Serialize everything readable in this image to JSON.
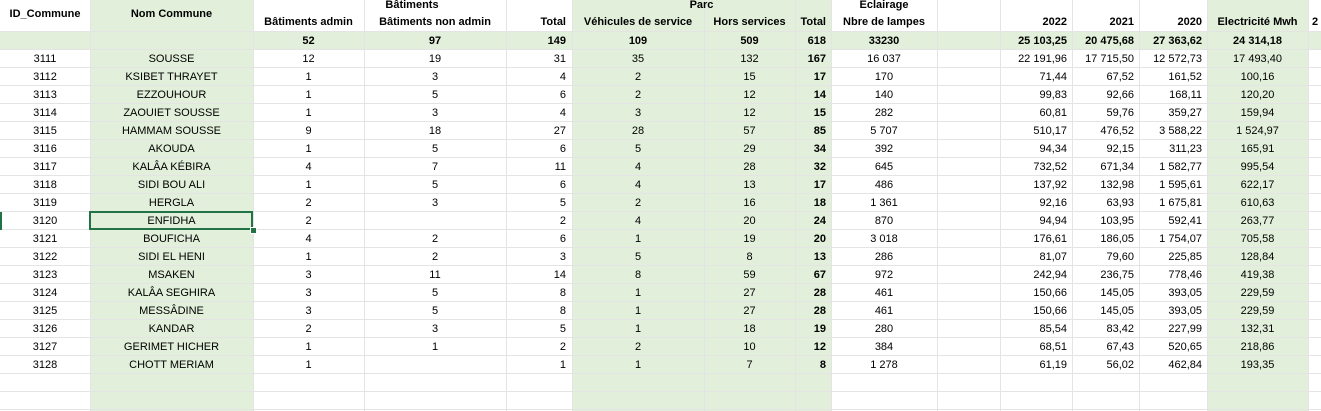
{
  "headers": {
    "id": "ID_Commune",
    "nom": "Nom Commune",
    "group_batiments": "Bâtiments",
    "group_parc": "Parc",
    "group_eclairage": "Eclairage",
    "bat_admin": "Bâtiments admin",
    "bat_non_admin": "Bâtiments non admin",
    "bat_total": "Total",
    "veh_service": "Véhicules de service",
    "hors_services": "Hors services",
    "parc_total": "Total",
    "lampes": "Nbre de lampes",
    "y2022": "2022",
    "y2021": "2021",
    "y2020": "2020",
    "elec": "Electricité Mwh",
    "next_col": "2"
  },
  "totals": {
    "bat_admin": "52",
    "bat_non_admin": "97",
    "bat_total": "149",
    "veh_service": "109",
    "hors_services": "509",
    "parc_total": "618",
    "lampes": "33230",
    "y2022": "25 103,25",
    "y2021": "20 475,68",
    "y2020": "27 363,62",
    "elec": "24 314,18"
  },
  "rows": [
    {
      "id": "3111",
      "nom": "SOUSSE",
      "ba": "12",
      "bna": "19",
      "bt": "31",
      "vs": "35",
      "hs": "132",
      "pt": "167",
      "lampes": "16 037",
      "y2022": "22 191,96",
      "y2021": "17 715,50",
      "y2020": "12 572,73",
      "elec": "17 493,40"
    },
    {
      "id": "3112",
      "nom": "KSIBET THRAYET",
      "ba": "1",
      "bna": "3",
      "bt": "4",
      "vs": "2",
      "hs": "15",
      "pt": "17",
      "lampes": "170",
      "y2022": "71,44",
      "y2021": "67,52",
      "y2020": "161,52",
      "elec": "100,16"
    },
    {
      "id": "3113",
      "nom": "EZZOUHOUR",
      "ba": "1",
      "bna": "5",
      "bt": "6",
      "vs": "2",
      "hs": "12",
      "pt": "14",
      "lampes": "140",
      "y2022": "99,83",
      "y2021": "92,66",
      "y2020": "168,11",
      "elec": "120,20"
    },
    {
      "id": "3114",
      "nom": "ZAOUIET SOUSSE",
      "ba": "1",
      "bna": "3",
      "bt": "4",
      "vs": "3",
      "hs": "12",
      "pt": "15",
      "lampes": "282",
      "y2022": "60,81",
      "y2021": "59,76",
      "y2020": "359,27",
      "elec": "159,94"
    },
    {
      "id": "3115",
      "nom": "HAMMAM SOUSSE",
      "ba": "9",
      "bna": "18",
      "bt": "27",
      "vs": "28",
      "hs": "57",
      "pt": "85",
      "lampes": "5 707",
      "y2022": "510,17",
      "y2021": "476,52",
      "y2020": "3 588,22",
      "elec": "1 524,97"
    },
    {
      "id": "3116",
      "nom": "AKOUDA",
      "ba": "1",
      "bna": "5",
      "bt": "6",
      "vs": "5",
      "hs": "29",
      "pt": "34",
      "lampes": "392",
      "y2022": "94,34",
      "y2021": "92,15",
      "y2020": "311,23",
      "elec": "165,91"
    },
    {
      "id": "3117",
      "nom": "KALÂA KÉBIRA",
      "ba": "4",
      "bna": "7",
      "bt": "11",
      "vs": "4",
      "hs": "28",
      "pt": "32",
      "lampes": "645",
      "y2022": "732,52",
      "y2021": "671,34",
      "y2020": "1 582,77",
      "elec": "995,54"
    },
    {
      "id": "3118",
      "nom": "SIDI BOU ALI",
      "ba": "1",
      "bna": "5",
      "bt": "6",
      "vs": "4",
      "hs": "13",
      "pt": "17",
      "lampes": "486",
      "y2022": "137,92",
      "y2021": "132,98",
      "y2020": "1 595,61",
      "elec": "622,17"
    },
    {
      "id": "3119",
      "nom": "HERGLA",
      "ba": "2",
      "bna": "3",
      "bt": "5",
      "vs": "2",
      "hs": "16",
      "pt": "18",
      "lampes": "1 361",
      "y2022": "92,16",
      "y2021": "63,93",
      "y2020": "1 675,81",
      "elec": "610,63"
    },
    {
      "id": "3120",
      "nom": "ENFIDHA",
      "ba": "2",
      "bna": "",
      "bt": "2",
      "vs": "4",
      "hs": "20",
      "pt": "24",
      "lampes": "870",
      "y2022": "94,94",
      "y2021": "103,95",
      "y2020": "592,41",
      "elec": "263,77"
    },
    {
      "id": "3121",
      "nom": "BOUFICHA",
      "ba": "4",
      "bna": "2",
      "bt": "6",
      "vs": "1",
      "hs": "19",
      "pt": "20",
      "lampes": "3 018",
      "y2022": "176,61",
      "y2021": "186,05",
      "y2020": "1 754,07",
      "elec": "705,58"
    },
    {
      "id": "3122",
      "nom": "SIDI EL HENI",
      "ba": "1",
      "bna": "2",
      "bt": "3",
      "vs": "5",
      "hs": "8",
      "pt": "13",
      "lampes": "286",
      "y2022": "81,07",
      "y2021": "79,60",
      "y2020": "225,85",
      "elec": "128,84"
    },
    {
      "id": "3123",
      "nom": "MSAKEN",
      "ba": "3",
      "bna": "11",
      "bt": "14",
      "vs": "8",
      "hs": "59",
      "pt": "67",
      "lampes": "972",
      "y2022": "242,94",
      "y2021": "236,75",
      "y2020": "778,46",
      "elec": "419,38"
    },
    {
      "id": "3124",
      "nom": "KALÂA SEGHIRA",
      "ba": "3",
      "bna": "5",
      "bt": "8",
      "vs": "1",
      "hs": "27",
      "pt": "28",
      "lampes": "461",
      "y2022": "150,66",
      "y2021": "145,05",
      "y2020": "393,05",
      "elec": "229,59"
    },
    {
      "id": "3125",
      "nom": "MESSÂDINE",
      "ba": "3",
      "bna": "5",
      "bt": "8",
      "vs": "1",
      "hs": "27",
      "pt": "28",
      "lampes": "461",
      "y2022": "150,66",
      "y2021": "145,05",
      "y2020": "393,05",
      "elec": "229,59"
    },
    {
      "id": "3126",
      "nom": "KANDAR",
      "ba": "2",
      "bna": "3",
      "bt": "5",
      "vs": "1",
      "hs": "18",
      "pt": "19",
      "lampes": "280",
      "y2022": "85,54",
      "y2021": "83,42",
      "y2020": "227,99",
      "elec": "132,31"
    },
    {
      "id": "3127",
      "nom": "GERIMET HICHER",
      "ba": "1",
      "bna": "1",
      "bt": "2",
      "vs": "2",
      "hs": "10",
      "pt": "12",
      "lampes": "384",
      "y2022": "68,51",
      "y2021": "67,43",
      "y2020": "520,65",
      "elec": "218,86"
    },
    {
      "id": "3128",
      "nom": "CHOTT MERIAM",
      "ba": "1",
      "bna": "",
      "bt": "1",
      "vs": "1",
      "hs": "7",
      "pt": "8",
      "lampes": "1 278",
      "y2022": "61,19",
      "y2021": "56,02",
      "y2020": "462,84",
      "elec": "193,35"
    }
  ],
  "colors": {
    "green_fill": "#e2efda",
    "selection": "#217346",
    "gridline": "#e4e4e4"
  }
}
